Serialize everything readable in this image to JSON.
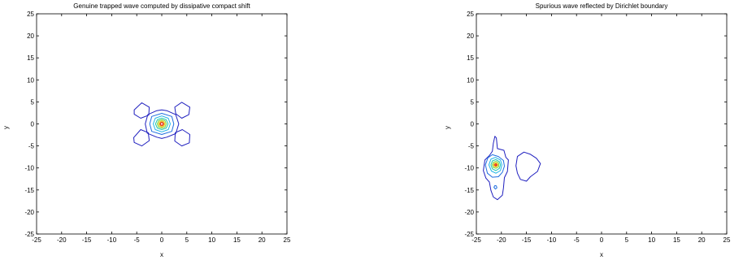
{
  "chart_data": [
    {
      "type": "contour",
      "title": "Genuine trapped wave computed by dissipative compact shift",
      "xlabel": "x",
      "ylabel": "y",
      "xlim": [
        -25,
        25
      ],
      "ylim": [
        -25,
        25
      ],
      "xticks": [
        -25,
        -20,
        -15,
        -10,
        -5,
        0,
        5,
        10,
        15,
        20,
        25
      ],
      "yticks": [
        25,
        20,
        15,
        10,
        5,
        0,
        -5,
        -10,
        -15,
        -20,
        -25
      ],
      "grid": false,
      "contours": [
        {
          "color": "#1f1fbf",
          "points": [
            [
              -5.5,
              3.2
            ],
            [
              -4,
              4.8
            ],
            [
              -2.5,
              3.8
            ],
            [
              -2.6,
              2
            ],
            [
              -4.2,
              1.3
            ],
            [
              -5.5,
              2.2
            ]
          ]
        },
        {
          "color": "#1f1fbf",
          "points": [
            [
              2.6,
              3.8
            ],
            [
              4,
              4.9
            ],
            [
              5.6,
              3.8
            ],
            [
              5.4,
              2.1
            ],
            [
              4,
              1.3
            ],
            [
              2.8,
              2.3
            ]
          ]
        },
        {
          "color": "#1f1fbf",
          "points": [
            [
              -5.6,
              -3.1
            ],
            [
              -4.2,
              -1.3
            ],
            [
              -2.7,
              -2
            ],
            [
              -2.5,
              -3.8
            ],
            [
              -4,
              -5
            ],
            [
              -5.5,
              -4.2
            ]
          ]
        },
        {
          "color": "#1f1fbf",
          "points": [
            [
              2.7,
              -2
            ],
            [
              4.1,
              -1.3
            ],
            [
              5.6,
              -2.4
            ],
            [
              5.5,
              -4.3
            ],
            [
              4,
              -5
            ],
            [
              2.6,
              -3.9
            ]
          ]
        },
        {
          "color": "#1f1fbf",
          "points": [
            [
              -3.3,
              0
            ],
            [
              -2.8,
              2.1
            ],
            [
              -1,
              3
            ],
            [
              0,
              3.2
            ],
            [
              1,
              3
            ],
            [
              2.8,
              2.1
            ],
            [
              3.4,
              0
            ],
            [
              2.8,
              -2.2
            ],
            [
              1,
              -3
            ],
            [
              0,
              -3.3
            ],
            [
              -1,
              -3
            ],
            [
              -2.9,
              -2.1
            ]
          ]
        },
        {
          "color": "#1f6ee0",
          "points": [
            [
              -2.4,
              0
            ],
            [
              -2,
              1.7
            ],
            [
              0,
              2.4
            ],
            [
              2,
              1.7
            ],
            [
              2.4,
              0
            ],
            [
              2,
              -1.7
            ],
            [
              0,
              -2.4
            ],
            [
              -2,
              -1.7
            ]
          ]
        },
        {
          "color": "#1fb4e6",
          "points": [
            [
              -1.7,
              0
            ],
            [
              -1.3,
              1.3
            ],
            [
              0,
              1.8
            ],
            [
              1.3,
              1.3
            ],
            [
              1.7,
              0
            ],
            [
              1.3,
              -1.3
            ],
            [
              0,
              -1.8
            ],
            [
              -1.3,
              -1.3
            ]
          ]
        },
        {
          "color": "#22c8a8",
          "points": [
            [
              -1.25,
              0
            ],
            [
              -0.9,
              0.95
            ],
            [
              0,
              1.3
            ],
            [
              0.9,
              0.95
            ],
            [
              1.25,
              0
            ],
            [
              0.9,
              -0.95
            ],
            [
              0,
              -1.3
            ],
            [
              -0.9,
              -0.95
            ]
          ]
        },
        {
          "color": "#7fd13b",
          "points": [
            [
              -0.9,
              0
            ],
            [
              -0.65,
              0.7
            ],
            [
              0,
              0.95
            ],
            [
              0.65,
              0.7
            ],
            [
              0.9,
              0
            ],
            [
              0.65,
              -0.7
            ],
            [
              0,
              -0.95
            ],
            [
              -0.65,
              -0.7
            ]
          ]
        },
        {
          "color": "#e8d21a",
          "points": [
            [
              -0.65,
              0
            ],
            [
              -0.45,
              0.5
            ],
            [
              0,
              0.7
            ],
            [
              0.45,
              0.5
            ],
            [
              0.65,
              0
            ],
            [
              0.45,
              -0.5
            ],
            [
              0,
              -0.7
            ],
            [
              -0.45,
              -0.5
            ]
          ]
        },
        {
          "color": "#f08a1c",
          "points": [
            [
              -0.45,
              0
            ],
            [
              -0.3,
              0.35
            ],
            [
              0,
              0.48
            ],
            [
              0.3,
              0.35
            ],
            [
              0.45,
              0
            ],
            [
              0.3,
              -0.35
            ],
            [
              0,
              -0.48
            ],
            [
              -0.3,
              -0.35
            ]
          ]
        },
        {
          "color": "#e02020",
          "points": [
            [
              -0.28,
              0
            ],
            [
              -0.2,
              0.22
            ],
            [
              0,
              0.3
            ],
            [
              0.2,
              0.22
            ],
            [
              0.28,
              0
            ],
            [
              0.2,
              -0.22
            ],
            [
              0,
              -0.3
            ],
            [
              -0.2,
              -0.22
            ]
          ]
        }
      ]
    },
    {
      "type": "contour",
      "title": "Spurious wave reflected by Dirichlet boundary",
      "xlabel": "x",
      "ylabel": "y",
      "xlim": [
        -25,
        25
      ],
      "ylim": [
        -25,
        25
      ],
      "xticks": [
        -25,
        -20,
        -15,
        -10,
        -5,
        0,
        5,
        10,
        15,
        20,
        25
      ],
      "yticks": [
        25,
        20,
        15,
        10,
        5,
        0,
        -5,
        -10,
        -15,
        -20,
        -25
      ],
      "grid": false,
      "contours": [
        {
          "color": "#1f1fbf",
          "points": [
            [
              -21.3,
              -2.8
            ],
            [
              -21,
              -3.2
            ],
            [
              -20.8,
              -5.6
            ],
            [
              -19.5,
              -6
            ],
            [
              -19.1,
              -7.6
            ],
            [
              -18.6,
              -8.2
            ],
            [
              -18.8,
              -10.8
            ],
            [
              -19.4,
              -12.2
            ],
            [
              -19.6,
              -14.6
            ],
            [
              -19.8,
              -16.2
            ],
            [
              -20.8,
              -17.2
            ],
            [
              -21.6,
              -16.6
            ],
            [
              -22.1,
              -15.1
            ],
            [
              -22.4,
              -13.2
            ],
            [
              -23.1,
              -12.3
            ],
            [
              -23.6,
              -10.6
            ],
            [
              -23.3,
              -8.2
            ],
            [
              -22.4,
              -7.2
            ],
            [
              -21.8,
              -6.2
            ],
            [
              -21.6,
              -4.4
            ]
          ]
        },
        {
          "color": "#1f1fbf",
          "points": [
            [
              -16.8,
              -7.4
            ],
            [
              -15.5,
              -6.4
            ],
            [
              -14.2,
              -6.9
            ],
            [
              -13,
              -7.8
            ],
            [
              -12.2,
              -9
            ],
            [
              -12.8,
              -10.8
            ],
            [
              -14.2,
              -12
            ],
            [
              -15,
              -13
            ],
            [
              -16.2,
              -12.6
            ],
            [
              -16.8,
              -11.2
            ],
            [
              -17.1,
              -9.5
            ]
          ]
        },
        {
          "color": "#1f6ee0",
          "points": [
            [
              -23.2,
              -9.3
            ],
            [
              -22.7,
              -7.7
            ],
            [
              -21.8,
              -7
            ],
            [
              -20.6,
              -7.4
            ],
            [
              -19.6,
              -8.3
            ],
            [
              -19.4,
              -9.6
            ],
            [
              -19.8,
              -11
            ],
            [
              -20.6,
              -12
            ],
            [
              -21.8,
              -12.1
            ],
            [
              -22.8,
              -11.2
            ]
          ]
        },
        {
          "color": "#1fb4e6",
          "points": [
            [
              -22.5,
              -9.3
            ],
            [
              -22.1,
              -8
            ],
            [
              -21.2,
              -7.6
            ],
            [
              -20.2,
              -8.2
            ],
            [
              -19.9,
              -9.3
            ],
            [
              -20.2,
              -10.6
            ],
            [
              -21.1,
              -11.2
            ],
            [
              -22,
              -10.7
            ]
          ]
        },
        {
          "color": "#22c8a8",
          "points": [
            [
              -22.1,
              -9.3
            ],
            [
              -21.8,
              -8.4
            ],
            [
              -21.1,
              -8.1
            ],
            [
              -20.4,
              -8.6
            ],
            [
              -20.2,
              -9.3
            ],
            [
              -20.4,
              -10.1
            ],
            [
              -21.1,
              -10.6
            ],
            [
              -21.8,
              -10.2
            ]
          ]
        },
        {
          "color": "#7fd13b",
          "points": [
            [
              -21.8,
              -9.3
            ],
            [
              -21.6,
              -8.7
            ],
            [
              -21.1,
              -8.5
            ],
            [
              -20.6,
              -8.8
            ],
            [
              -20.5,
              -9.3
            ],
            [
              -20.6,
              -9.8
            ],
            [
              -21.1,
              -10.1
            ],
            [
              -21.6,
              -9.9
            ]
          ]
        },
        {
          "color": "#e8d21a",
          "points": [
            [
              -21.6,
              -9.3
            ],
            [
              -21.4,
              -8.9
            ],
            [
              -21.1,
              -8.8
            ],
            [
              -20.8,
              -9
            ],
            [
              -20.7,
              -9.3
            ],
            [
              -20.8,
              -9.6
            ],
            [
              -21.1,
              -9.8
            ],
            [
              -21.4,
              -9.7
            ]
          ]
        },
        {
          "color": "#f08a1c",
          "points": [
            [
              -21.45,
              -9.3
            ],
            [
              -21.3,
              -9.05
            ],
            [
              -21.1,
              -9
            ],
            [
              -20.9,
              -9.1
            ],
            [
              -20.85,
              -9.3
            ],
            [
              -20.9,
              -9.5
            ],
            [
              -21.1,
              -9.6
            ],
            [
              -21.3,
              -9.55
            ]
          ]
        },
        {
          "color": "#e02020",
          "points": [
            [
              -21.3,
              -9.3
            ],
            [
              -21.2,
              -9.15
            ],
            [
              -21.1,
              -9.12
            ],
            [
              -21,
              -9.18
            ],
            [
              -20.95,
              -9.3
            ],
            [
              -21,
              -9.42
            ],
            [
              -21.1,
              -9.47
            ],
            [
              -21.2,
              -9.43
            ]
          ]
        },
        {
          "color": "#1f6ee0",
          "points": [
            [
              -21.5,
              -14.4
            ],
            [
              -21.3,
              -14
            ],
            [
              -21,
              -14.1
            ],
            [
              -20.9,
              -14.5
            ],
            [
              -21.2,
              -14.8
            ]
          ]
        }
      ]
    }
  ]
}
